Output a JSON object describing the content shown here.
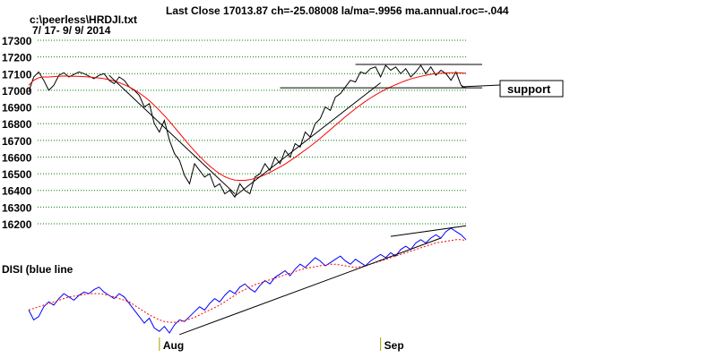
{
  "header": {
    "title": "Last Close 17013.87 ch=-25.08008  la/ma=.9956 ma.annual.roc=-.044",
    "file": "c:\\peerless\\HRDJI.txt",
    "date_range": "7/ 17- 9/ 9/ 2014"
  },
  "annotations": {
    "support": "support",
    "disi_label": "DISI (blue line"
  },
  "colors": {
    "price": "#000000",
    "ma": "#ff0000",
    "disi": "#0000ff",
    "disi_ma": "#ff0000",
    "grid": "#008000",
    "trendline": "#000000"
  },
  "chart_data": [
    {
      "type": "line",
      "title": "Last Close 17013.87 ch=-25.08008  la/ma=.9956 ma.annual.roc=-.044",
      "xlabel": "",
      "ylabel": "",
      "x_ticks": [
        "Aug",
        "Sep"
      ],
      "y_ticks": [
        17300,
        17200,
        17100,
        17000,
        16900,
        16800,
        16700,
        16600,
        16500,
        16400,
        16300,
        16200
      ],
      "ylim": [
        16200,
        17300
      ],
      "grid": true,
      "series": [
        {
          "values": [
            16990,
            17080,
            17110,
            17060,
            17000,
            17030,
            17090,
            17105,
            17080,
            17095,
            17110,
            17100,
            17085,
            17070,
            17090,
            17100,
            17060,
            17040,
            17080,
            17060,
            17020,
            17000,
            16970,
            16900,
            16920,
            16800,
            16750,
            16820,
            16700,
            16620,
            16580,
            16490,
            16440,
            16560,
            16520,
            16480,
            16500,
            16420,
            16440,
            16380,
            16400,
            16360,
            16440,
            16400,
            16380,
            16480,
            16500,
            16560,
            16520,
            16600,
            16560,
            16640,
            16600,
            16680,
            16660,
            16750,
            16720,
            16800,
            16830,
            16900,
            16880,
            16960,
            16980,
            17020,
            17060,
            17050,
            17110,
            17100,
            17130,
            17140,
            17080,
            17150,
            17120,
            17140,
            17100,
            17130,
            17080,
            17110,
            17150,
            17100,
            17140,
            17090,
            17120,
            17100,
            17060,
            17110,
            17030,
            17013
          ]
        },
        {
          "values": [
            17030,
            17060,
            17075,
            17080,
            17080,
            17082,
            17084,
            17086,
            17085,
            17084,
            17083,
            17082,
            17080,
            17077,
            17074,
            17070,
            17064,
            17056,
            17046,
            17034,
            17020,
            17003,
            16984,
            16962,
            16938,
            16910,
            16880,
            16848,
            16814,
            16778,
            16742,
            16706,
            16670,
            16636,
            16604,
            16574,
            16546,
            16522,
            16500,
            16482,
            16470,
            16462,
            16460,
            16460,
            16464,
            16472,
            16482,
            16494,
            16508,
            16524,
            16540,
            16558,
            16578,
            16598,
            16620,
            16642,
            16664,
            16688,
            16712,
            16738,
            16764,
            16790,
            16816,
            16842,
            16866,
            16890,
            16912,
            16934,
            16954,
            16972,
            16990,
            17006,
            17020,
            17034,
            17046,
            17058,
            17068,
            17076,
            17084,
            17090,
            17096,
            17100,
            17102,
            17104,
            17105,
            17105,
            17104,
            17102
          ]
        }
      ],
      "trendlines": [
        {
          "from": [
            16,
            17090
          ],
          "to": [
            41,
            16380
          ]
        },
        {
          "from": [
            41,
            16365
          ],
          "to": [
            70,
            17045
          ]
        },
        {
          "from": [
            50,
            17015
          ],
          "to": [
            90,
            17015
          ]
        },
        {
          "from": [
            65,
            17155
          ],
          "to": [
            90,
            17155
          ]
        }
      ]
    },
    {
      "type": "line",
      "title": "DISI (blue line",
      "x_ticks": [
        "Aug",
        "Sep"
      ],
      "grid": false,
      "series": [
        {
          "values": [
            30,
            18,
            22,
            34,
            40,
            36,
            44,
            50,
            46,
            42,
            48,
            52,
            50,
            55,
            58,
            52,
            48,
            44,
            50,
            46,
            38,
            30,
            22,
            14,
            20,
            8,
            4,
            10,
            2,
            12,
            18,
            16,
            22,
            28,
            34,
            30,
            38,
            44,
            40,
            48,
            54,
            50,
            58,
            62,
            56,
            52,
            60,
            66,
            62,
            70,
            74,
            78,
            72,
            80,
            86,
            82,
            88,
            94,
            90,
            84,
            88,
            92,
            96,
            90,
            86,
            92,
            88,
            84,
            90,
            94,
            98,
            94,
            100,
            96,
            104,
            108,
            104,
            112,
            116,
            112,
            118,
            122,
            118,
            126,
            130,
            126,
            122,
            116
          ]
        },
        {
          "values": [
            30,
            32,
            34,
            36,
            38,
            40,
            42,
            44,
            46,
            47,
            48,
            49,
            50,
            50,
            50,
            49,
            48,
            46,
            44,
            42,
            40,
            36,
            32,
            28,
            24,
            21,
            18,
            16,
            15,
            15,
            16,
            17,
            19,
            21,
            24,
            27,
            30,
            33,
            36,
            40,
            44,
            48,
            52,
            55,
            58,
            61,
            63,
            65,
            67,
            69,
            71,
            73,
            75,
            77,
            79,
            81,
            82,
            83,
            84,
            85,
            86,
            86,
            85,
            84,
            83,
            82,
            83,
            84,
            86,
            88,
            90,
            92,
            94,
            96,
            98,
            100,
            102,
            104,
            106,
            108,
            110,
            112,
            113,
            114,
            115,
            116,
            116,
            115
          ]
        }
      ],
      "trendlines": [
        {
          "from": [
            30,
            0
          ],
          "to": [
            82,
            118
          ]
        },
        {
          "from": [
            72,
            120
          ],
          "to": [
            90,
            133
          ]
        }
      ]
    }
  ]
}
